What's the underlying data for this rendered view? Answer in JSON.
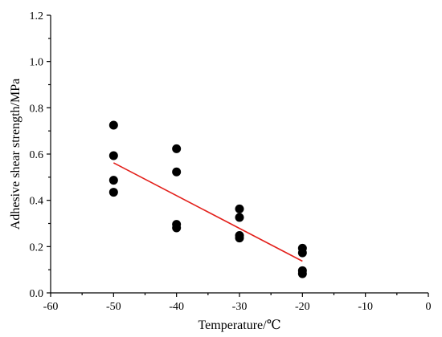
{
  "chart_data": {
    "type": "scatter",
    "xlabel": "Temperature/℃",
    "ylabel": "Adhesive shear strength/MPa",
    "xlim": [
      -60,
      0
    ],
    "ylim": [
      0.0,
      1.2
    ],
    "x_ticks": [
      "-60",
      "-50",
      "-40",
      "-30",
      "-20",
      "-10",
      "0"
    ],
    "y_ticks": [
      "0.0",
      "0.2",
      "0.4",
      "0.6",
      "0.8",
      "1.0",
      "1.2"
    ],
    "grid": false,
    "legend": "none",
    "series": [
      {
        "kind": "points",
        "color": "#000000",
        "x": [
          -50,
          -50,
          -50,
          -50,
          -40,
          -40,
          -40,
          -40,
          -30,
          -30,
          -30,
          -30,
          -20,
          -20,
          -20,
          -20
        ],
        "y": [
          0.725,
          0.593,
          0.487,
          0.435,
          0.623,
          0.523,
          0.296,
          0.281,
          0.363,
          0.326,
          0.248,
          0.237,
          0.193,
          0.173,
          0.096,
          0.083
        ]
      },
      {
        "kind": "fit-line",
        "color": "#e3201b",
        "x": [
          -50,
          -20
        ],
        "y": [
          0.562,
          0.137
        ]
      }
    ]
  }
}
